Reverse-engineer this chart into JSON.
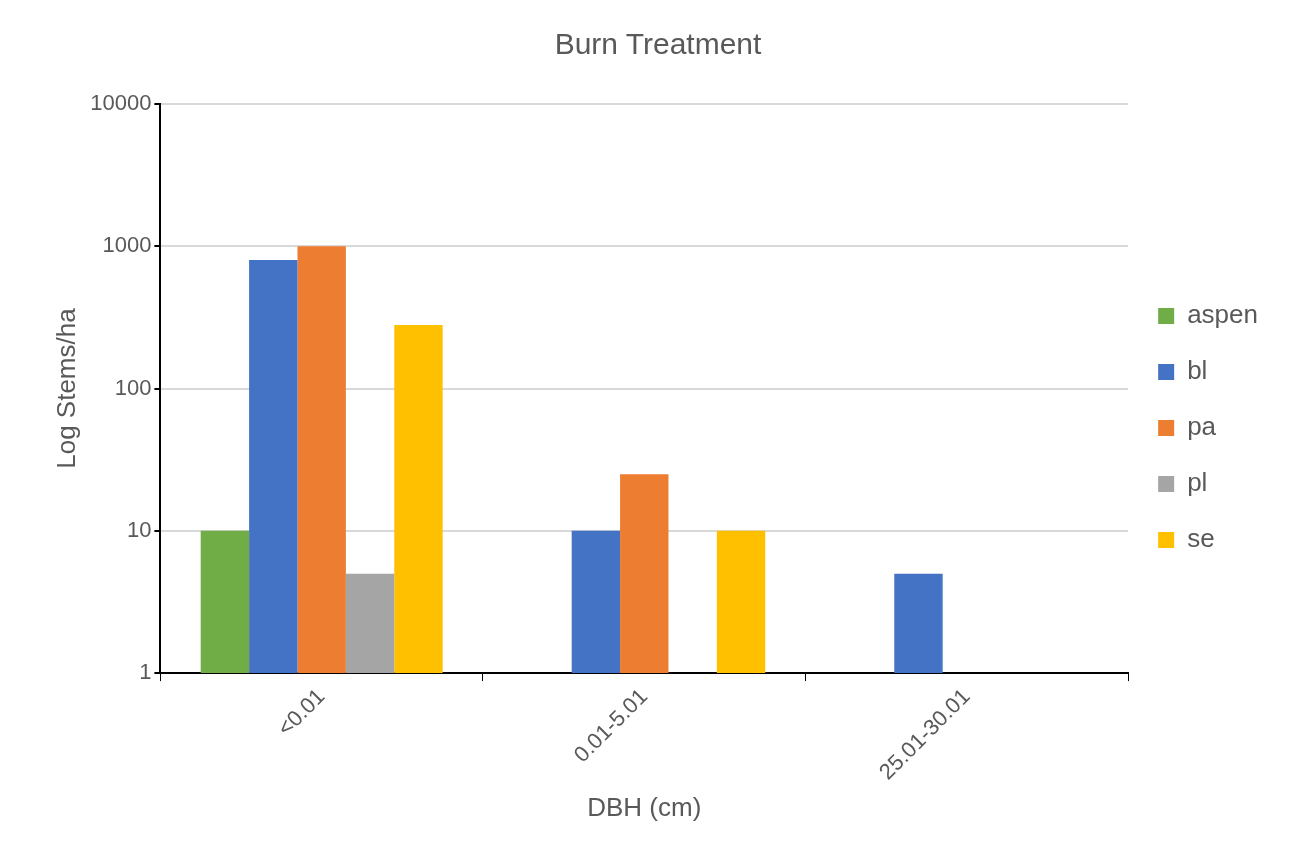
{
  "chart_data": {
    "type": "bar",
    "title": "Burn Treatment",
    "xlabel": "DBH (cm)",
    "ylabel": "Log Stems/ha",
    "categories": [
      "<0.01",
      "0.01-5.01",
      "25.01-30.01"
    ],
    "series": [
      {
        "name": "aspen",
        "color": "#70ad47",
        "values": [
          10,
          null,
          null
        ]
      },
      {
        "name": "bl",
        "color": "#4472c4",
        "values": [
          800,
          10,
          5
        ]
      },
      {
        "name": "pa",
        "color": "#ed7d31",
        "values": [
          1000,
          25,
          null
        ]
      },
      {
        "name": "pl",
        "color": "#a5a5a5",
        "values": [
          5,
          null,
          null
        ]
      },
      {
        "name": "se",
        "color": "#ffc000",
        "values": [
          280,
          10,
          null
        ]
      }
    ],
    "log": "y",
    "ylim": [
      1,
      10000
    ],
    "yticks": [
      1,
      10,
      100,
      1000,
      10000
    ],
    "grid": "y",
    "legend": "right"
  }
}
